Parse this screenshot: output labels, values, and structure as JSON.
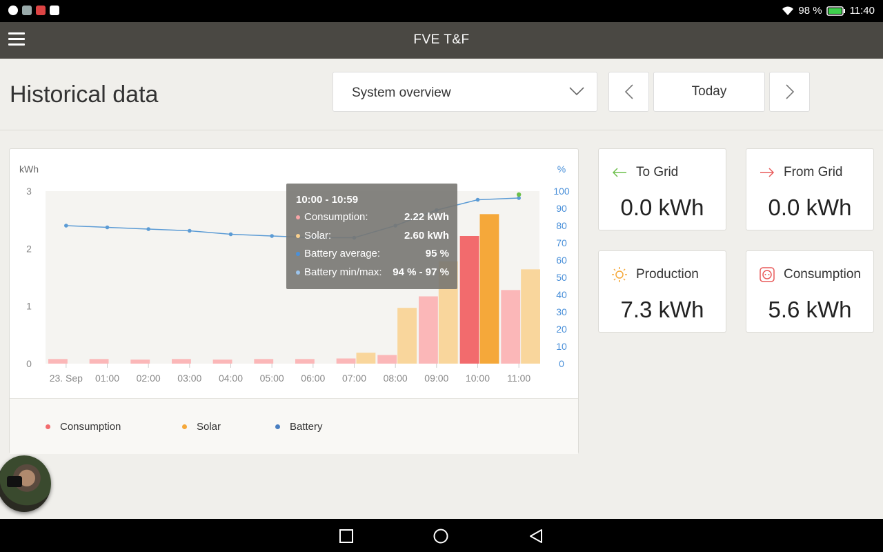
{
  "status_bar": {
    "battery": "98 %",
    "time": "11:40"
  },
  "app_bar": {
    "title": "FVE T&F"
  },
  "page": {
    "title": "Historical data"
  },
  "controls": {
    "view_select": "System overview",
    "today": "Today"
  },
  "chart_data": {
    "type": "bar",
    "y_left_label": "kWh",
    "y_right_label": "%",
    "y_left_ticks": [
      "0",
      "1",
      "2",
      "3"
    ],
    "y_right_ticks": [
      "0",
      "10",
      "20",
      "30",
      "40",
      "50",
      "60",
      "70",
      "80",
      "90",
      "100"
    ],
    "ylim": [
      0,
      3
    ],
    "y_right_lim": [
      0,
      100
    ],
    "x_labels": [
      "23. Sep",
      "01:00",
      "02:00",
      "03:00",
      "04:00",
      "05:00",
      "06:00",
      "07:00",
      "08:00",
      "09:00",
      "10:00",
      "11:00"
    ],
    "series": [
      {
        "name": "Consumption",
        "color": "#f88f91",
        "values": [
          0.08,
          0.08,
          0.07,
          0.08,
          0.07,
          0.08,
          0.08,
          0.09,
          0.15,
          1.17,
          2.22,
          1.28
        ]
      },
      {
        "name": "Solar",
        "color": "#f9c97e",
        "values": [
          0,
          0,
          0,
          0,
          0,
          0,
          0,
          0.19,
          0.97,
          1.78,
          2.6,
          1.64
        ]
      },
      {
        "name": "Battery",
        "color": "#4a90d9",
        "values": [
          80,
          79,
          78,
          77,
          75,
          74,
          73,
          73,
          80,
          89,
          95,
          96
        ]
      }
    ],
    "battery_max_last": 98,
    "highlight_index": 10,
    "tooltip": {
      "title": "10:00 - 10:59",
      "rows": [
        {
          "label": "Consumption:",
          "value": "2.22 kWh",
          "color": "#f8a5a7"
        },
        {
          "label": "Solar:",
          "value": "2.60 kWh",
          "color": "#f9d08e"
        },
        {
          "label": "Battery average:",
          "value": "95 %",
          "color": "#4a90d9"
        },
        {
          "label": "Battery min/max:",
          "value": "94 % - 97 %",
          "color": "#9cc4ec"
        }
      ]
    },
    "legend": [
      "Consumption",
      "Solar",
      "Battery"
    ],
    "legend_colors": [
      "#f26b6d",
      "#f5a83a",
      "#4a7fc1"
    ]
  },
  "stats": [
    {
      "label": "To Grid",
      "value": "0.0 kWh",
      "icon": "arrow-left-icon",
      "color": "#6cbf4a"
    },
    {
      "label": "From Grid",
      "value": "0.0 kWh",
      "icon": "arrow-right-icon",
      "color": "#e85a5a"
    },
    {
      "label": "Production",
      "value": "7.3 kWh",
      "icon": "sun-icon",
      "color": "#f5a83a"
    },
    {
      "label": "Consumption",
      "value": "5.6 kWh",
      "icon": "outlet-icon",
      "color": "#e85a5a"
    }
  ]
}
